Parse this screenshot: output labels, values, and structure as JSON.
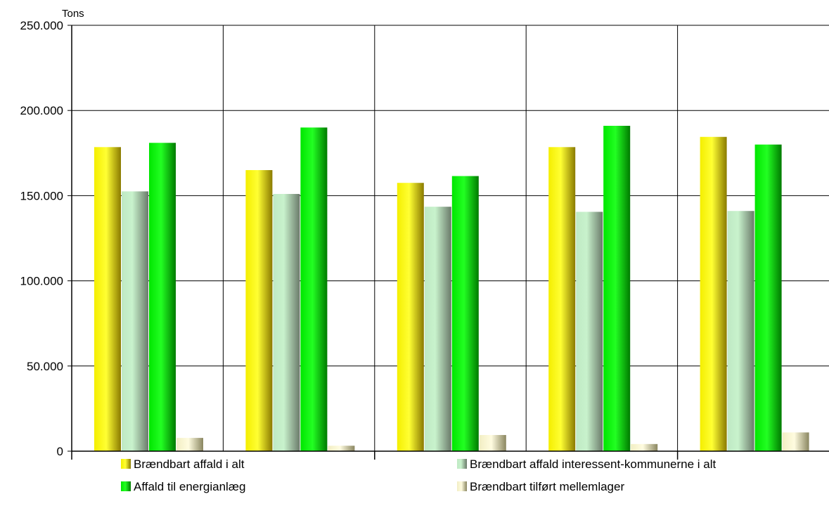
{
  "chart_data": {
    "type": "bar",
    "title": "",
    "unit_label": "Tons",
    "xlabel": "",
    "ylabel": "",
    "ylim": [
      0,
      250000
    ],
    "y_ticks": [
      0,
      50000,
      100000,
      150000,
      200000,
      250000
    ],
    "y_tick_labels": [
      "0",
      "50.000",
      "100.000",
      "150.000",
      "200.000",
      "250.000"
    ],
    "categories": [
      "",
      "",
      "",
      "",
      ""
    ],
    "grid": true,
    "legend_position": "bottom",
    "series": [
      {
        "name": "Brændbart affald i alt",
        "color": "#e8e000",
        "values": [
          178500,
          165000,
          157500,
          178500,
          184500
        ]
      },
      {
        "name": "Brændbart affald interessent-kommunerne i alt",
        "color": "#9fd9a8",
        "values": [
          152500,
          151000,
          143500,
          140500,
          141000
        ]
      },
      {
        "name": "Affald til energianlæg",
        "color": "#00d000",
        "values": [
          181000,
          190000,
          161500,
          191000,
          180000
        ]
      },
      {
        "name": "Brændbart tilført mellemlager",
        "color": "#e8e4b0",
        "values": [
          7800,
          3200,
          9500,
          4200,
          11000
        ]
      }
    ]
  }
}
